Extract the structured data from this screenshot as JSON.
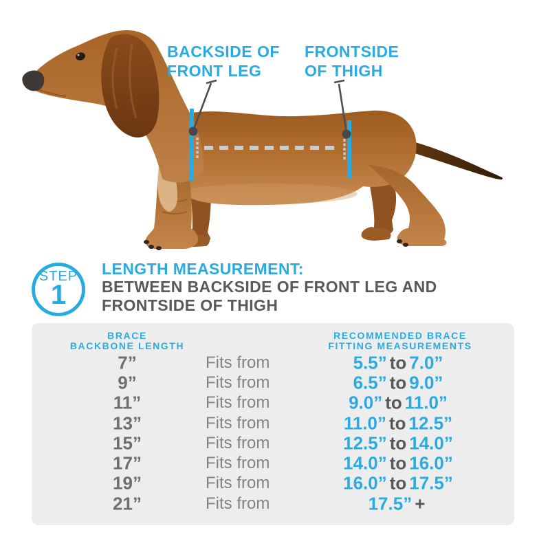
{
  "colors": {
    "accent": "#29ABE2",
    "dark_text": "#58595B",
    "size_text": "#6D6E71",
    "muted_text": "#808285",
    "panel_bg": "#EDEDEE",
    "pin": "#4D4D4F",
    "dash_gray": "#C9CBCD"
  },
  "annotations": {
    "front_label_line1": "BACKSIDE OF",
    "front_label_line2": "FRONT LEG",
    "rear_label_line1": "FRONTSIDE",
    "rear_label_line2": "OF THIGH"
  },
  "step": {
    "word": "STEP",
    "number": "1"
  },
  "heading": {
    "title": "LENGTH MEASUREMENT:",
    "line1": "BETWEEN BACKSIDE OF FRONT LEG AND",
    "line2": "FRONTSIDE OF THIGH"
  },
  "table": {
    "header_col1_line1": "BRACE",
    "header_col1_line2": "BACKBONE LENGTH",
    "header_col2_line1": "RECOMMENDED BRACE",
    "header_col2_line2": "FITTING MEASUREMENTS",
    "rows": [
      {
        "size": "7”",
        "fits": "Fits from",
        "from": "5.5”",
        "connector": "to",
        "to": "7.0”"
      },
      {
        "size": "9”",
        "fits": "Fits from",
        "from": "6.5”",
        "connector": "to",
        "to": "9.0”"
      },
      {
        "size": "11”",
        "fits": "Fits from",
        "from": "9.0”",
        "connector": "to",
        "to": "11.0”"
      },
      {
        "size": "13”",
        "fits": "Fits from",
        "from": "11.0”",
        "connector": "to",
        "to": "12.5”"
      },
      {
        "size": "15”",
        "fits": "Fits from",
        "from": "12.5”",
        "connector": "to",
        "to": "14.0”"
      },
      {
        "size": "17”",
        "fits": "Fits from",
        "from": "14.0”",
        "connector": "to",
        "to": "16.0”"
      },
      {
        "size": "19”",
        "fits": "Fits from",
        "from": "16.0”",
        "connector": "to",
        "to": "17.5”"
      },
      {
        "size": "21”",
        "fits": "Fits from",
        "from": "17.5”",
        "connector": "+",
        "to": ""
      }
    ]
  }
}
